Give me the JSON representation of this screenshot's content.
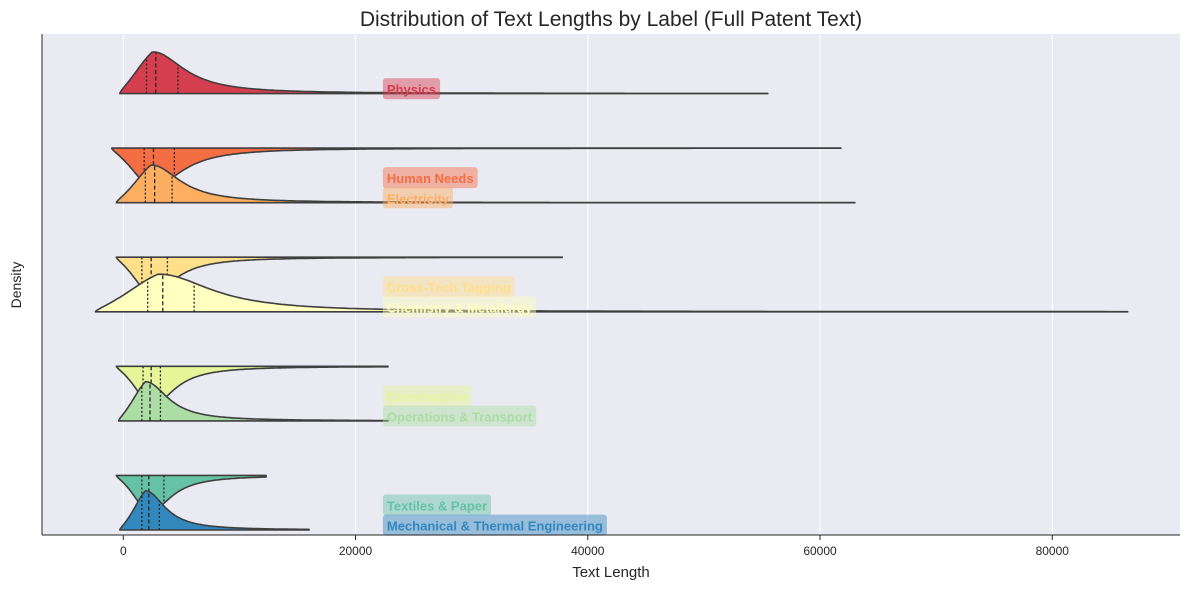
{
  "chart_data": {
    "type": "violin",
    "title": "Distribution of Text Lengths by Label (Full Patent Text)",
    "xlabel": "Text Length",
    "ylabel": "Density",
    "xlim": [
      -7000,
      91000
    ],
    "xticks": [
      0,
      20000,
      40000,
      60000,
      80000
    ],
    "xtick_labels": [
      "0",
      "20000",
      "40000",
      "60000",
      "80000"
    ],
    "grid": "vertical",
    "inner": "quartile",
    "series": [
      {
        "name": "Physics",
        "color": "#d53e4f",
        "side": "upper",
        "min": -300,
        "max": 55500,
        "q1": 2000,
        "median": 2800,
        "q3": 4700,
        "mode": 2500,
        "spread": 3100,
        "peak": 0.83
      },
      {
        "name": "Human Needs",
        "color": "#f46d43",
        "side": "lower",
        "min": -1000,
        "max": 61800,
        "q1": 1800,
        "median": 2600,
        "q3": 4400,
        "mode": 2300,
        "spread": 3000,
        "peak": 0.8
      },
      {
        "name": "Electricity",
        "color": "#fdae61",
        "side": "upper",
        "min": -600,
        "max": 63000,
        "q1": 1900,
        "median": 2700,
        "q3": 4200,
        "mode": 2400,
        "spread": 2800,
        "peak": 0.75
      },
      {
        "name": "Cross-Tech Tagging",
        "color": "#fee08b",
        "side": "lower",
        "min": -600,
        "max": 37800,
        "q1": 1600,
        "median": 2400,
        "q3": 3800,
        "mode": 2200,
        "spread": 2500,
        "peak": 0.75
      },
      {
        "name": "Chemistry & Metallurgy",
        "color": "#ffffbf",
        "side": "upper",
        "min": -2400,
        "max": 86500,
        "q1": 2100,
        "median": 3400,
        "q3": 6100,
        "mode": 3000,
        "spread": 5200,
        "peak": 0.75
      },
      {
        "name": "Construction",
        "color": "#e6f598",
        "side": "lower",
        "min": -600,
        "max": 22800,
        "q1": 1700,
        "median": 2400,
        "q3": 3200,
        "mode": 2300,
        "spread": 2300,
        "peak": 0.8
      },
      {
        "name": "Operations & Transport",
        "color": "#abdda4",
        "side": "upper",
        "min": -400,
        "max": 22800,
        "q1": 1600,
        "median": 2300,
        "q3": 3200,
        "mode": 1900,
        "spread": 2200,
        "peak": 0.78
      },
      {
        "name": "Textiles & Paper",
        "color": "#66c2a5",
        "side": "lower",
        "min": -600,
        "max": 12300,
        "q1": 1600,
        "median": 2200,
        "q3": 3500,
        "mode": 2100,
        "spread": 2200,
        "peak": 0.75
      },
      {
        "name": "Mechanical & Thermal Engineering",
        "color": "#3288bd",
        "side": "upper",
        "min": -300,
        "max": 16000,
        "q1": 1600,
        "median": 2200,
        "q3": 3100,
        "mode": 1900,
        "spread": 1900,
        "peak": 0.78
      }
    ]
  }
}
